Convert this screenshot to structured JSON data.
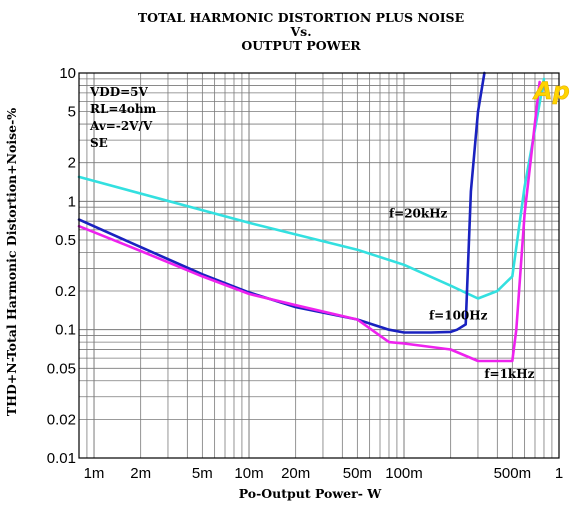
{
  "chart_data": {
    "type": "line",
    "title_lines": [
      "TOTAL HARMONIC DISTORTION PLUS NOISE",
      "Vs.",
      "OUTPUT POWER"
    ],
    "xlabel": "Po-Output Power- W",
    "ylabel": "THD+N-Total Harmonic Distortion+Noise-%",
    "x_scale": "log",
    "y_scale": "log",
    "xlim": [
      0.0008,
      1.0
    ],
    "ylim": [
      0.01,
      10
    ],
    "grid": true,
    "x_ticks": [
      {
        "value": 0.001,
        "label": "1m"
      },
      {
        "value": 0.002,
        "label": "2m"
      },
      {
        "value": 0.005,
        "label": "5m"
      },
      {
        "value": 0.01,
        "label": "10m"
      },
      {
        "value": 0.02,
        "label": "20m"
      },
      {
        "value": 0.05,
        "label": "50m"
      },
      {
        "value": 0.1,
        "label": "100m"
      },
      {
        "value": 0.5,
        "label": "500m"
      },
      {
        "value": 1.0,
        "label": "1"
      }
    ],
    "y_ticks": [
      {
        "value": 10,
        "label": "10"
      },
      {
        "value": 5,
        "label": "5"
      },
      {
        "value": 2,
        "label": "2"
      },
      {
        "value": 1,
        "label": "1"
      },
      {
        "value": 0.5,
        "label": "0.5"
      },
      {
        "value": 0.2,
        "label": "0.2"
      },
      {
        "value": 0.1,
        "label": "0.1"
      },
      {
        "value": 0.05,
        "label": "0.05"
      },
      {
        "value": 0.02,
        "label": "0.02"
      },
      {
        "value": 0.01,
        "label": "0.01"
      }
    ],
    "annotations": [
      "VDD=5V",
      "RL=4ohm",
      "Av=-2V/V",
      "SE"
    ],
    "logo": "Ap",
    "colors": {
      "grid": "#7a7a7a",
      "frame": "#000000"
    },
    "series": [
      {
        "name": "f=20kHz",
        "color": "#33e0e0",
        "x": [
          0.0008,
          0.01,
          0.05,
          0.1,
          0.2,
          0.3,
          0.4,
          0.5,
          0.6,
          0.8
        ],
        "y": [
          1.55,
          0.68,
          0.42,
          0.32,
          0.22,
          0.175,
          0.2,
          0.26,
          1.3,
          9.0
        ]
      },
      {
        "name": "f=100Hz",
        "color": "#1a22c0",
        "x": [
          0.0008,
          0.002,
          0.005,
          0.01,
          0.02,
          0.05,
          0.08,
          0.1,
          0.15,
          0.2,
          0.22,
          0.25,
          0.27,
          0.3,
          0.33
        ],
        "y": [
          0.72,
          0.44,
          0.27,
          0.195,
          0.15,
          0.12,
          0.1,
          0.095,
          0.095,
          0.096,
          0.1,
          0.11,
          1.2,
          5.0,
          11.0
        ]
      },
      {
        "name": "f=1kHz",
        "color": "#ee22ee",
        "x": [
          0.0008,
          0.002,
          0.005,
          0.01,
          0.02,
          0.05,
          0.08,
          0.1,
          0.2,
          0.3,
          0.4,
          0.5,
          0.53,
          0.6,
          0.75
        ],
        "y": [
          0.64,
          0.41,
          0.26,
          0.19,
          0.155,
          0.12,
          0.08,
          0.078,
          0.07,
          0.057,
          0.057,
          0.057,
          0.1,
          0.8,
          8.5
        ]
      }
    ],
    "series_label_positions": {
      "f=20kHz": [
        0.08,
        0.75
      ],
      "f=100Hz": [
        0.145,
        0.12
      ],
      "f=1kHz": [
        0.33,
        0.042
      ]
    }
  }
}
